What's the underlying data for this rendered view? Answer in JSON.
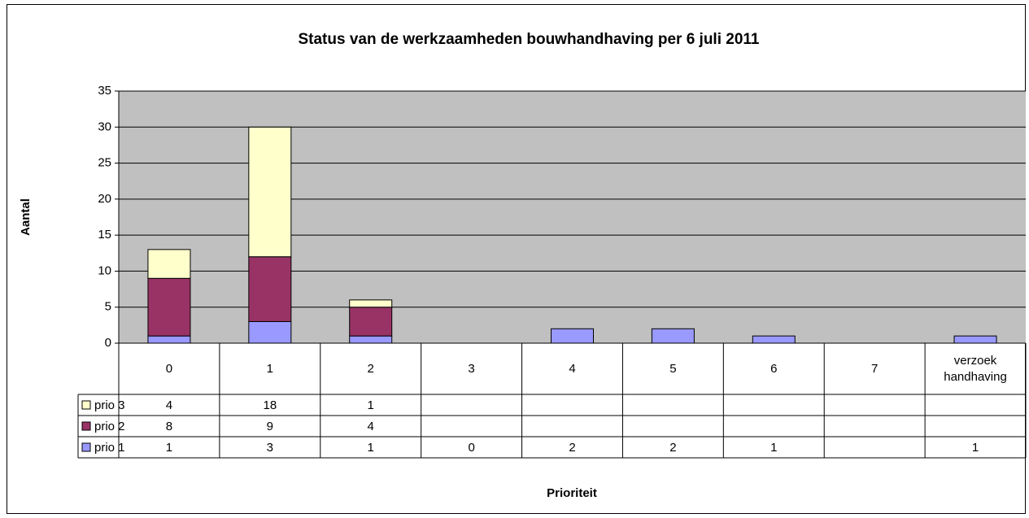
{
  "chart_data": {
    "type": "bar",
    "stacked": true,
    "title": "Status van de werkzaamheden bouwhandhaving per 6 juli 2011",
    "x_label": "Prioriteit",
    "y_label": "Aantal",
    "categories": [
      "0",
      "1",
      "2",
      "3",
      "4",
      "5",
      "6",
      "7",
      "verzoek handhaving"
    ],
    "series": [
      {
        "name": "prio 1",
        "color": "#9999ff",
        "values": [
          1,
          3,
          1,
          0,
          2,
          2,
          1,
          null,
          1
        ]
      },
      {
        "name": "prio 2",
        "color": "#993366",
        "values": [
          8,
          9,
          4,
          null,
          null,
          null,
          null,
          null,
          null
        ]
      },
      {
        "name": "prio 3",
        "color": "#ffffcc",
        "values": [
          4,
          18,
          1,
          null,
          null,
          null,
          null,
          null,
          null
        ]
      }
    ],
    "ylim": [
      0,
      35
    ],
    "yticks": [
      0,
      5,
      10,
      15,
      20,
      25,
      30,
      35
    ],
    "grid": true,
    "data_table": true
  }
}
